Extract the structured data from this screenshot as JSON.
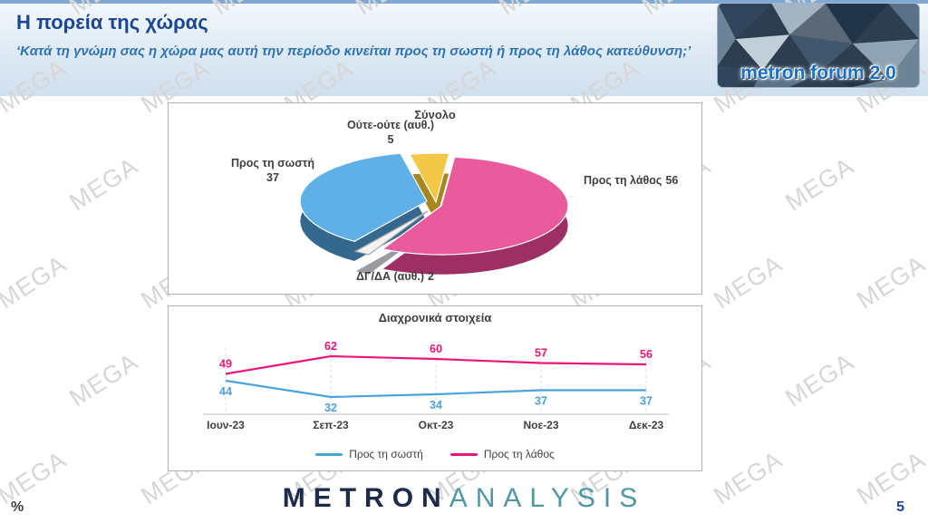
{
  "watermark": {
    "text": "MEGA"
  },
  "header": {
    "title": "Η πορεία της χώρας",
    "subtitle": "‘Κατά τη γνώμη σας η χώρα μας αυτή την περίοδο κινείται προς τη σωστή ή προς τη λάθος κατεύθυνση;’",
    "logo_text": "metron forum 2.0"
  },
  "chart_data": [
    {
      "type": "pie",
      "title": "Σύνολο",
      "slices": [
        {
          "label": "Ούτε-ούτε (αυθ.)",
          "value": 5,
          "color": "#f3c747",
          "dark": "#a8861f"
        },
        {
          "label": "Προς τη λάθος",
          "value": 56,
          "color": "#ea5b9d",
          "dark": "#9e2f64"
        },
        {
          "label": "ΔΓ/ΔΑ (αυθ.)",
          "value": 2,
          "color": "#f2f2f2",
          "dark": "#9a9aa0",
          "edge": "#a6a6a6"
        },
        {
          "label": "Προς τη σωστή",
          "value": 37,
          "color": "#5fb0e6",
          "dark": "#35688e"
        }
      ]
    },
    {
      "type": "line",
      "title": "Διαχρονικά στοιχεία",
      "categories": [
        "Ιουν-23",
        "Σεπ-23",
        "Οκτ-23",
        "Νοε-23",
        "Δεκ-23"
      ],
      "series": [
        {
          "name": "Προς τη σωστή",
          "values": [
            44,
            32,
            34,
            37,
            37
          ],
          "color": "#4ba3dc"
        },
        {
          "name": "Προς τη λάθος",
          "values": [
            49,
            62,
            60,
            57,
            56
          ],
          "color": "#e91778"
        }
      ],
      "ylim": [
        25,
        70
      ],
      "legend_position": "bottom",
      "grid": "vertical-dashed"
    }
  ],
  "footer": {
    "brand_primary": "METRON",
    "brand_secondary": "ANALYSIS",
    "percent_label": "%",
    "page_number": "5"
  }
}
